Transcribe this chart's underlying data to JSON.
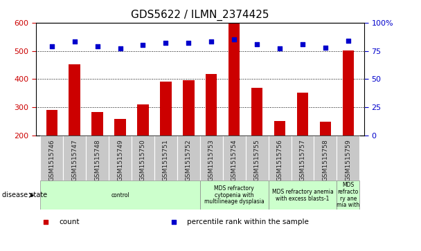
{
  "title": "GDS5622 / ILMN_2374425",
  "samples": [
    "GSM1515746",
    "GSM1515747",
    "GSM1515748",
    "GSM1515749",
    "GSM1515750",
    "GSM1515751",
    "GSM1515752",
    "GSM1515753",
    "GSM1515754",
    "GSM1515755",
    "GSM1515756",
    "GSM1515757",
    "GSM1515758",
    "GSM1515759"
  ],
  "counts": [
    290,
    452,
    283,
    260,
    310,
    390,
    397,
    418,
    600,
    368,
    252,
    352,
    250,
    502
  ],
  "percentile_ranks": [
    79,
    83,
    79,
    77,
    80,
    82,
    82,
    83,
    85,
    81,
    77,
    81,
    78,
    84
  ],
  "ylim_left": [
    200,
    600
  ],
  "ylim_right": [
    0,
    100
  ],
  "yticks_left": [
    200,
    300,
    400,
    500,
    600
  ],
  "yticks_right": [
    0,
    25,
    50,
    75,
    100
  ],
  "ytick_right_labels": [
    "0",
    "25",
    "50",
    "75",
    "100%"
  ],
  "bar_color": "#cc0000",
  "dot_color": "#0000cc",
  "disease_groups": [
    {
      "label": "control",
      "start": 0,
      "end": 7
    },
    {
      "label": "MDS refractory\ncytopenia with\nmultilineage dysplasia",
      "start": 7,
      "end": 10
    },
    {
      "label": "MDS refractory anemia\nwith excess blasts-1",
      "start": 10,
      "end": 13
    },
    {
      "label": "MDS\nrefracto\nry ane\nmia with",
      "start": 13,
      "end": 14
    }
  ],
  "disease_state_label": "disease state",
  "legend_items": [
    {
      "label": "count",
      "color": "#cc0000"
    },
    {
      "label": "percentile rank within the sample",
      "color": "#0000cc"
    }
  ],
  "title_fontsize": 11,
  "tick_fontsize": 8,
  "bar_width": 0.5,
  "dot_size": 25,
  "left_tick_color": "#cc0000",
  "right_tick_color": "#0000cc",
  "grey_box_color": "#c8c8c8",
  "green_box_color": "#ccffcc",
  "box_edge_color": "#888888"
}
